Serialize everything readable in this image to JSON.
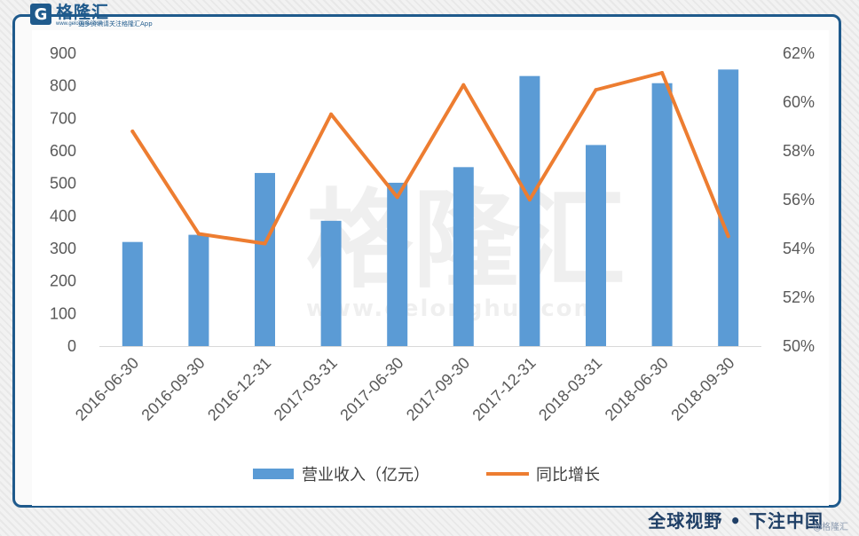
{
  "logo": {
    "mark": "G",
    "name": "格隆汇",
    "url": "www.gelonghui.com",
    "slogan": "更多资讯请关注格隆汇App"
  },
  "footer": {
    "slogan": "全球视野 • 下注中国",
    "corner_mark": "@格隆汇"
  },
  "watermark": {
    "text": "格隆汇",
    "url": "www.gelonghui.com"
  },
  "colors": {
    "bar": "#5b9bd5",
    "line": "#ed7d31",
    "frame": "#1f5a8c"
  },
  "chart_data": {
    "type": "bar",
    "categories": [
      "2016-06-30",
      "2016-09-30",
      "2016-12-31",
      "2017-03-31",
      "2017-06-30",
      "2017-09-30",
      "2017-12-31",
      "2018-03-31",
      "2018-06-30",
      "2018-09-30"
    ],
    "series": [
      {
        "name": "营业收入（亿元）",
        "type": "bar",
        "axis": "left",
        "values": [
          320,
          342,
          532,
          385,
          502,
          550,
          830,
          618,
          808,
          850
        ]
      },
      {
        "name": "同比增长",
        "type": "line",
        "axis": "right",
        "values": [
          58.8,
          54.6,
          54.2,
          59.5,
          56.1,
          60.7,
          56.0,
          60.5,
          61.2,
          54.5
        ]
      }
    ],
    "y_left": {
      "ylim": [
        0,
        900
      ],
      "ticks": [
        "0",
        "100",
        "200",
        "300",
        "400",
        "500",
        "600",
        "700",
        "800",
        "900"
      ]
    },
    "y_right": {
      "ylim": [
        50,
        62
      ],
      "ticks": [
        "50%",
        "52%",
        "54%",
        "56%",
        "58%",
        "60%",
        "62%"
      ]
    },
    "legend": {
      "position": "bottom"
    },
    "grid": false
  }
}
